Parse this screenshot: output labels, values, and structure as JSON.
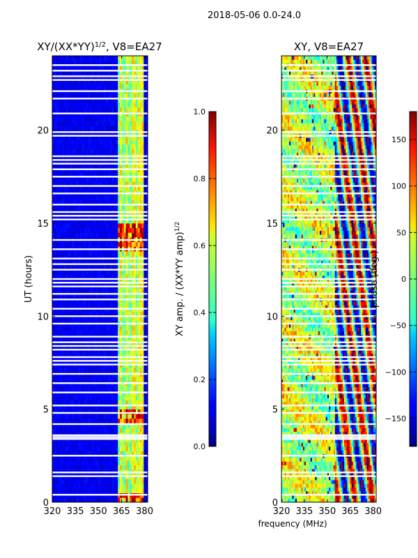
{
  "figure": {
    "suptitle": "2018-05-06 0.0-24.0",
    "shared_xlabel": "frequency (MHz)"
  },
  "chart_data": [
    {
      "type": "heatmap",
      "id": "amplitude",
      "title": "XY/(XX*YY)",
      "title_superscript": "1/2",
      "title_suffix": ", V8=EA27",
      "xlabel": "",
      "ylabel": "UT (hours)",
      "xlim": [
        320,
        382
      ],
      "ylim": [
        0,
        24
      ],
      "xticks": [
        320,
        335,
        350,
        365,
        380
      ],
      "yticks": [
        0,
        5,
        10,
        15,
        20
      ],
      "colorbar": {
        "label": "XY amp. / (XX*YY amp)",
        "label_superscript": "1/2",
        "range": [
          0.0,
          1.0
        ],
        "ticks": [
          "0.0",
          "0.2",
          "0.4",
          "0.6",
          "0.8",
          "1.0"
        ],
        "tick_values": [
          0.0,
          0.2,
          0.4,
          0.6,
          0.8,
          1.0
        ]
      },
      "data_summary": {
        "background_value": 0.08,
        "active_band_mhz": [
          362,
          380
        ],
        "active_band_value": 0.5,
        "strong_channels_mhz": [
          364.5,
          368.5,
          372.5,
          376.5,
          379.5
        ],
        "strong_channel_value": 0.9,
        "high_intervals_ut": [
          [
            13.4,
            15.0
          ],
          [
            0.0,
            0.6
          ],
          [
            4.3,
            5.1
          ]
        ]
      },
      "flagged_ut": [
        0.4,
        1.4,
        1.6,
        2.5,
        3.4,
        3.5,
        3.6,
        4.2,
        4.8,
        5.2,
        5.9,
        6.4,
        6.9,
        7.4,
        7.6,
        7.8,
        8.2,
        8.4,
        8.6,
        8.9,
        9.6,
        10.0,
        10.4,
        10.9,
        11.2,
        11.6,
        11.8,
        12.0,
        12.5,
        12.8,
        13.1,
        13.6,
        14.1,
        15.2,
        15.4,
        15.6,
        16.0,
        16.6,
        17.0,
        17.5,
        17.9,
        18.2,
        18.4,
        18.6,
        19.7,
        19.9,
        20.9,
        21.7,
        22.1,
        22.7,
        22.9,
        23.2,
        23.5
      ]
    },
    {
      "type": "heatmap",
      "id": "phase",
      "title": "XY, V8=EA27",
      "xlabel": "frequency (MHz)",
      "ylabel": "",
      "xlim": [
        320,
        382
      ],
      "ylim": [
        0,
        24
      ],
      "xticks": [
        320,
        335,
        350,
        365,
        380
      ],
      "yticks": [
        0,
        5,
        10,
        15,
        20
      ],
      "colorbar": {
        "label": "phase (deg.)",
        "range": [
          -180,
          180
        ],
        "ticks": [
          "−150",
          "−100",
          "−50",
          "0",
          "50",
          "100",
          "150"
        ],
        "tick_values": [
          -150,
          -100,
          -50,
          0,
          50,
          100,
          150
        ]
      },
      "data_summary": {
        "pattern": "noisy phase, mostly near 0 to +60 deg across 320-355 MHz, large +/-180 deg swings 355-382 MHz",
        "band_low_mhz": [
          320,
          355
        ],
        "band_high_mhz": [
          355,
          382
        ]
      },
      "flagged_ut": [
        0.4,
        1.4,
        1.6,
        2.5,
        3.4,
        3.5,
        3.6,
        4.2,
        4.8,
        5.2,
        5.9,
        6.4,
        6.9,
        7.4,
        7.6,
        7.8,
        8.2,
        8.4,
        8.6,
        8.9,
        9.6,
        10.0,
        10.4,
        10.9,
        11.2,
        11.6,
        11.8,
        12.0,
        12.5,
        12.8,
        13.1,
        13.6,
        14.1,
        15.2,
        15.4,
        15.6,
        16.0,
        16.6,
        17.0,
        17.5,
        17.9,
        18.2,
        18.4,
        18.6,
        19.7,
        19.9,
        20.9,
        21.7,
        22.1,
        22.7,
        22.9,
        23.2,
        23.5
      ]
    }
  ]
}
